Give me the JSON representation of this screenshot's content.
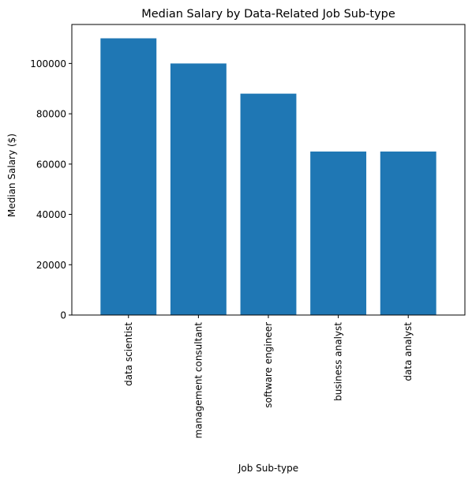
{
  "chart_data": {
    "type": "bar",
    "title": "Median Salary by Data-Related Job Sub-type",
    "xlabel": "Job Sub-type",
    "ylabel": "Median Salary ($)",
    "categories": [
      "data scientist",
      "management consultant",
      "software engineer",
      "business analyst",
      "data analyst"
    ],
    "values": [
      110000,
      100000,
      88000,
      65000,
      65000
    ],
    "ylim": [
      0,
      115500
    ],
    "yticks": [
      0,
      20000,
      40000,
      60000,
      80000,
      100000
    ],
    "ytick_labels": [
      "0",
      "20000",
      "40000",
      "60000",
      "80000",
      "100000"
    ],
    "bar_color": "#1f77b4",
    "grid": false,
    "legend": "none"
  }
}
